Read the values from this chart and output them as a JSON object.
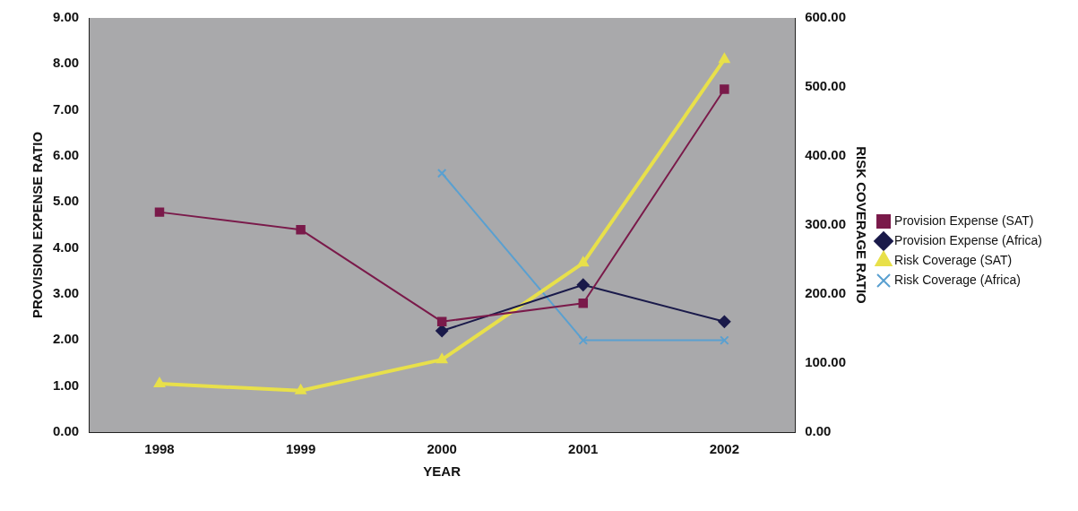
{
  "chart_data": {
    "type": "line",
    "xlabel": "YEAR",
    "ylabel": "PROVISION EXPENSE RATIO",
    "y2label": "RISK COVERAGE RATIO",
    "categories": [
      "1998",
      "1999",
      "2000",
      "2001",
      "2002"
    ],
    "series": [
      {
        "name": "Provision Expense (SAT)",
        "color": "#7a1a4a",
        "marker": "square",
        "values": [
          4.78,
          4.4,
          2.4,
          2.8,
          7.45
        ]
      },
      {
        "name": "Provision Expense (Africa)",
        "color": "#1a1a4a",
        "marker": "diamond",
        "values": [
          null,
          null,
          2.2,
          3.2,
          2.4
        ]
      },
      {
        "name": "Risk Coverage (SAT)",
        "color": "#e8e04a",
        "marker": "triangle",
        "axis": "y2",
        "values": [
          70,
          60,
          105,
          245,
          540
        ]
      },
      {
        "name": "Risk Coverage (Africa)",
        "color": "#5aa0d0",
        "marker": "cross",
        "axis": "y2",
        "values": [
          null,
          null,
          375,
          133,
          133
        ]
      }
    ],
    "ylim": [
      0,
      9
    ],
    "yticks": [
      {
        "value": 0,
        "label": "0.00"
      },
      {
        "value": 1,
        "label": "1.00"
      },
      {
        "value": 2,
        "label": "2.00"
      },
      {
        "value": 3,
        "label": "3.00"
      },
      {
        "value": 4,
        "label": "4.00"
      },
      {
        "value": 5,
        "label": "5.00"
      },
      {
        "value": 6,
        "label": "6.00"
      },
      {
        "value": 7,
        "label": "7.00"
      },
      {
        "value": 8,
        "label": "8.00"
      },
      {
        "value": 9,
        "label": "9.00"
      }
    ],
    "y2lim": [
      0,
      600
    ],
    "y2ticks": [
      {
        "value": 0,
        "label": "0.00"
      },
      {
        "value": 100,
        "label": "100.00"
      },
      {
        "value": 200,
        "label": "200.00"
      },
      {
        "value": 300,
        "label": "300.00"
      },
      {
        "value": 400,
        "label": "400.00"
      },
      {
        "value": 500,
        "label": "500.00"
      },
      {
        "value": 600,
        "label": "600.00"
      }
    ],
    "grid": false,
    "legend": "right",
    "line_style": "solid"
  }
}
